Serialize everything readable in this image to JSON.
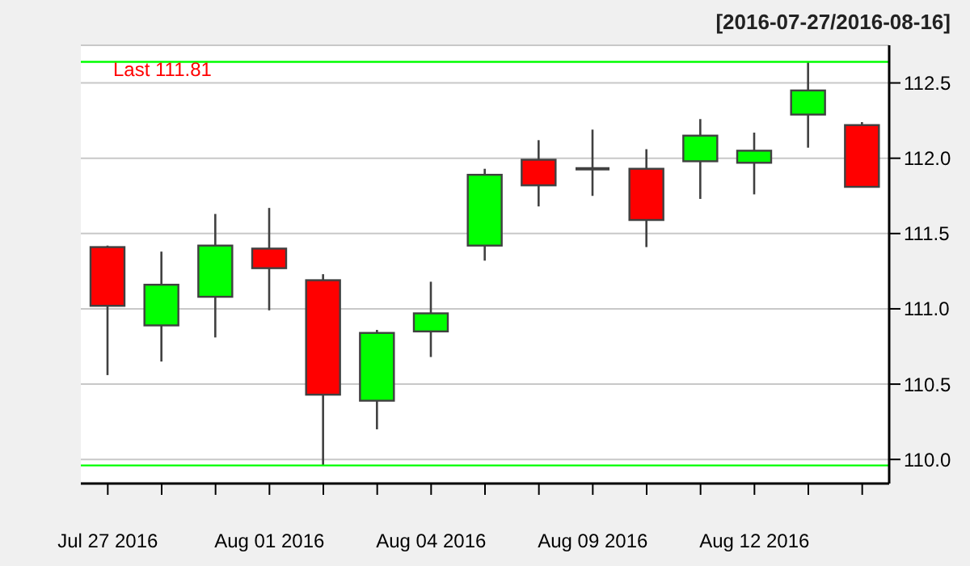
{
  "chart_data": {
    "type": "candlestick",
    "subtitle": "[2016-07-27/2016-08-16]",
    "categories": [
      "Jul 27 2016",
      null,
      null,
      "Aug 01 2016",
      null,
      null,
      "Aug 04 2016",
      null,
      null,
      "Aug 09 2016",
      null,
      null,
      "Aug 12 2016",
      null,
      null
    ],
    "ohlc": [
      [
        111.41,
        111.42,
        110.56,
        111.02
      ],
      [
        110.89,
        111.38,
        110.65,
        111.16
      ],
      [
        111.08,
        111.63,
        110.81,
        111.42
      ],
      [
        111.4,
        111.67,
        110.99,
        111.27
      ],
      [
        111.19,
        111.23,
        109.96,
        110.43
      ],
      [
        110.39,
        110.86,
        110.2,
        110.84
      ],
      [
        110.85,
        111.18,
        110.68,
        110.97
      ],
      [
        111.42,
        111.93,
        111.32,
        111.89
      ],
      [
        111.99,
        112.12,
        111.68,
        111.82
      ],
      [
        111.93,
        112.19,
        111.75,
        111.93
      ],
      [
        111.93,
        112.06,
        111.41,
        111.59
      ],
      [
        111.98,
        112.26,
        111.73,
        112.15
      ],
      [
        111.97,
        112.17,
        111.76,
        112.05
      ],
      [
        112.29,
        112.64,
        112.07,
        112.45
      ],
      [
        112.22,
        112.24,
        111.81,
        111.81
      ]
    ],
    "colors": [
      "#ff0000",
      "#00ff00",
      "#00ff00",
      "#ff0000",
      "#ff0000",
      "#00ff00",
      "#00ff00",
      "#00ff00",
      "#ff0000",
      "#404040",
      "#ff0000",
      "#00ff00",
      "#00ff00",
      "#00ff00",
      "#ff0000"
    ],
    "ylim": [
      109.84,
      112.75
    ],
    "yticks": [
      {
        "value": 110,
        "label": "110.0"
      },
      {
        "value": 110.5,
        "label": "110.5"
      },
      {
        "value": 111,
        "label": "111.0"
      },
      {
        "value": 111.5,
        "label": "111.5"
      },
      {
        "value": 112,
        "label": "112.0"
      },
      {
        "value": 112.5,
        "label": "112.5"
      }
    ],
    "grid": "y",
    "ref_lines": [
      {
        "axis": "y",
        "value": 112.64,
        "color": "#00ff00"
      },
      {
        "axis": "y",
        "value": 109.96,
        "color": "#00ff00"
      }
    ],
    "annotations": [
      "Last 111.81"
    ]
  }
}
